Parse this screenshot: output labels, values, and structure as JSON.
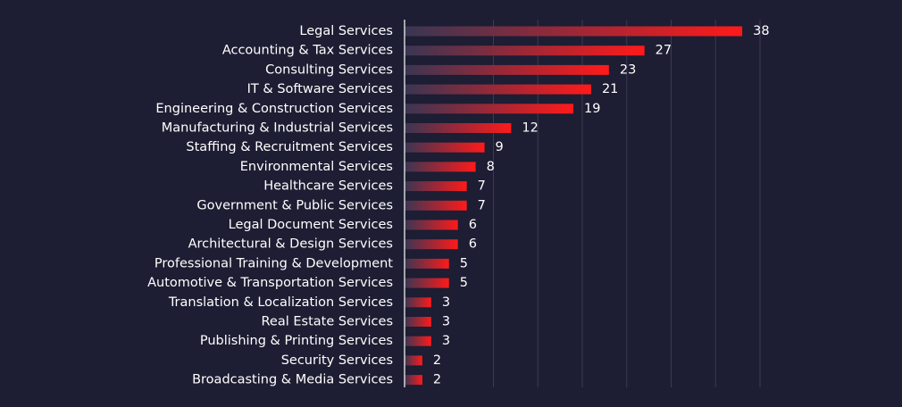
{
  "colors": {
    "background": "#1d1d33",
    "bar_start": "#3a3653",
    "bar_end": "#ff1a1a",
    "gridline": "#3a3a52",
    "axis_line": "#ffffff",
    "text": "#ffffff"
  },
  "chart_data": {
    "type": "bar",
    "orientation": "horizontal",
    "title": "",
    "xlabel": "",
    "ylabel": "",
    "grid": true,
    "legend": "none",
    "categories": [
      "Legal Services",
      "Accounting & Tax Services",
      "Consulting Services",
      "IT & Software Services",
      "Engineering & Construction Services",
      "Manufacturing & Industrial Services",
      "Staffing & Recruitment Services",
      "Environmental Services",
      "Healthcare Services",
      "Government & Public Services",
      "Legal Document Services",
      "Architectural & Design Services",
      "Professional Training & Development",
      "Automotive & Transportation Services",
      "Translation & Localization Services",
      "Real Estate Services",
      "Publishing & Printing Services",
      "Security Services",
      "Broadcasting & Media Services"
    ],
    "values": [
      38,
      27,
      23,
      21,
      19,
      12,
      9,
      8,
      7,
      7,
      6,
      6,
      5,
      5,
      3,
      3,
      3,
      2,
      2
    ],
    "xlim": [
      0,
      40
    ]
  }
}
